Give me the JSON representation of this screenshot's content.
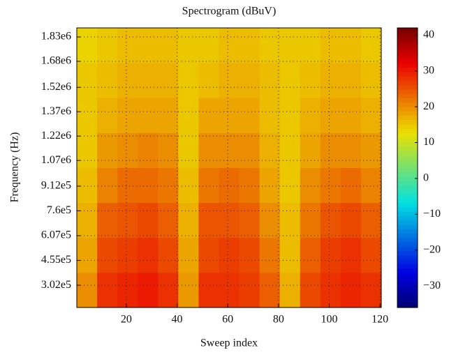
{
  "chart_data": {
    "type": "heatmap",
    "title": "Spectrogram (dBuV)",
    "xlabel": "Sweep index",
    "ylabel": "Frequency (Hz)",
    "xbins": [
      0.5,
      8.5,
      16.5,
      24.5,
      32.5,
      40.5,
      48.5,
      56.5,
      64.5,
      72.5,
      80.5,
      88.5,
      96.5,
      104.5,
      112.5,
      120.5
    ],
    "ybins": [
      165000,
      380125,
      595250,
      810375,
      1025500,
      1240625,
      1455750,
      1670875,
      1886000
    ],
    "z": [
      [
        20,
        28,
        29,
        30,
        28,
        19,
        28,
        28,
        27,
        24,
        17,
        26,
        28,
        29,
        28
      ],
      [
        18,
        26,
        27,
        28,
        26,
        18,
        26,
        27,
        26,
        22,
        16,
        24,
        27,
        28,
        26
      ],
      [
        17,
        24,
        25,
        26,
        24,
        17,
        25,
        25,
        24,
        20,
        16,
        22,
        25,
        26,
        24
      ],
      [
        16,
        21,
        23,
        23,
        22,
        16,
        22,
        23,
        22,
        18,
        15,
        20,
        22,
        23,
        21
      ],
      [
        15,
        19,
        20,
        21,
        20,
        15,
        20,
        20,
        20,
        17,
        15,
        18,
        20,
        20,
        19
      ],
      [
        15,
        17,
        18,
        18,
        18,
        15,
        18,
        18,
        18,
        16,
        15,
        17,
        18,
        18,
        17
      ],
      [
        15,
        16,
        17,
        17,
        17,
        15,
        16,
        17,
        17,
        16,
        15,
        16,
        17,
        17,
        16
      ],
      [
        14,
        15,
        16,
        16,
        16,
        15,
        15,
        16,
        16,
        15,
        15,
        15,
        16,
        16,
        15
      ]
    ],
    "xlim": [
      0.5,
      120.5
    ],
    "xticks": [
      20,
      40,
      60,
      80,
      100,
      120
    ],
    "ylim": [
      165000,
      1886000
    ],
    "yticks": [
      {
        "value": 302000,
        "label": "3.02e5"
      },
      {
        "value": 455000,
        "label": "4.55e5"
      },
      {
        "value": 607000,
        "label": "6.07e5"
      },
      {
        "value": 760000,
        "label": "7.6e5"
      },
      {
        "value": 912000,
        "label": "9.12e5"
      },
      {
        "value": 1070000,
        "label": "1.07e6"
      },
      {
        "value": 1220000,
        "label": "1.22e6"
      },
      {
        "value": 1370000,
        "label": "1.37e6"
      },
      {
        "value": 1520000,
        "label": "1.52e6"
      },
      {
        "value": 1680000,
        "label": "1.68e6"
      },
      {
        "value": 1830000,
        "label": "1.83e6"
      }
    ],
    "clim": [
      -36,
      42
    ],
    "cticks": [
      {
        "value": -30,
        "label": "−30"
      },
      {
        "value": -20,
        "label": "−20"
      },
      {
        "value": -10,
        "label": "−10"
      },
      0,
      10,
      20,
      30,
      40
    ],
    "colormap": "jet",
    "grid": true
  }
}
